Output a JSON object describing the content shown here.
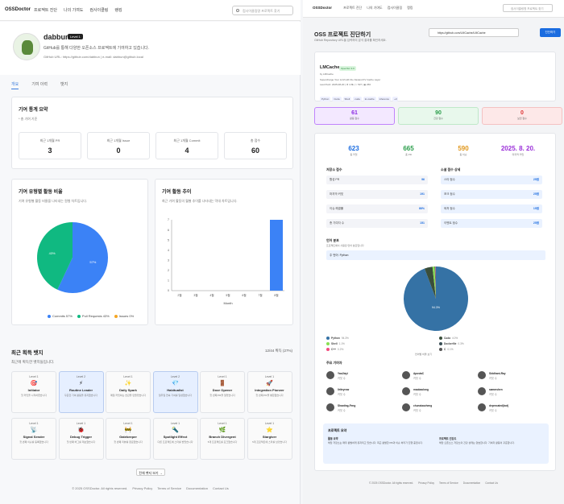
{
  "left": {
    "nav": {
      "brand": "OSSDoctor",
      "links": [
        "프로젝트 진단",
        "나의 기여도",
        "컴사이클링",
        "랭킹"
      ],
      "search_placeholder": "컴사이클링명 프로젝트 찾기"
    },
    "profile": {
      "name": "dabbun",
      "level": "Level 1",
      "desc": "GitHub를 통해 다양한 오픈소스 프로젝트에 기여하고 있습니다.",
      "url": "GitHub URL: https://github.com/dabbun | e-mail: dabbun@github.local"
    },
    "tabs": [
      "개요",
      "기여 이력",
      "뱃지"
    ],
    "stats": {
      "title": "기여 통계 요약",
      "sub": "* 총 기여 기준",
      "items": [
        {
          "label": "최근 1개월 PR",
          "value": "3"
        },
        {
          "label": "최근 1개월 Issue",
          "value": "0"
        },
        {
          "label": "최근 1개월 Commit",
          "value": "4"
        },
        {
          "label": "총 점수",
          "value": "60"
        }
      ]
    },
    "ratio": {
      "title": "기여 유형별 활동 비율",
      "sub": "기여 유형별 활동 비율을 나타내는 원형 차트입니다.",
      "legend": [
        "Commits 57%",
        "Pull Requests 43%",
        "Issues 0%"
      ],
      "colors": [
        "#3b82f6",
        "#10b981",
        "#f5a623"
      ]
    },
    "trend": {
      "title": "기여 활동 추이",
      "sub": "최근 기여 활동의 월별 추이를 나타내는 막대 차트입니다.",
      "xlabel": "Month"
    },
    "badges": {
      "title": "최근 획득 뱃지",
      "count": "12/44 획득 (27%)",
      "sub": "최근에 획득한 뱃지들입니다.",
      "more": "전체 뱃지 보기 →",
      "items": [
        {
          "level": "Level 1",
          "icon": "🎯",
          "name": "Initiator",
          "desc": "첫 커밋을 시작하였습니다",
          "hi": false
        },
        {
          "level": "Level 2",
          "icon": "⚡",
          "name": "Routine Leader",
          "desc": "꾸준한 기여 활동을 유지했습니다",
          "hi": true
        },
        {
          "level": "Level 1",
          "icon": "✨",
          "name": "Daily Spark",
          "desc": "매일 커밋하는 습관을 만들었습니다",
          "hi": false
        },
        {
          "level": "Level 2",
          "icon": "💎",
          "name": "Habitualist",
          "desc": "일주일 연속 기여를 달성했습니다",
          "hi": true
        },
        {
          "level": "Level 1",
          "icon": "🚪",
          "name": "Door Opener",
          "desc": "첫 번째 PR을 열었습니다",
          "hi": false
        },
        {
          "level": "Level 1",
          "icon": "🚀",
          "name": "Integration Pioneer",
          "desc": "첫 번째 PR을 병합했습니다",
          "hi": false
        },
        {
          "level": "Level 1",
          "icon": "📡",
          "name": "Signal Sender",
          "desc": "첫 번째 이슈를 등록했습니다",
          "hi": false
        },
        {
          "level": "Level 1",
          "icon": "🐞",
          "name": "Debug Trigger",
          "desc": "첫 번째 버그를 제보했습니다",
          "hi": false
        },
        {
          "level": "Level 1",
          "icon": "🚧",
          "name": "Gatekeeper",
          "desc": "첫 번째 리뷰를 완료했습니다",
          "hi": false
        },
        {
          "level": "Level 1",
          "icon": "🔦",
          "name": "Spotlight Effect",
          "desc": "다른 프로젝트에 스타를 받았습니다",
          "hi": false
        },
        {
          "level": "Level 1",
          "icon": "🌿",
          "name": "Branch Divergent",
          "desc": "5개 프로젝트를 포크했습니다",
          "hi": false
        },
        {
          "level": "Level 1",
          "icon": "⭐",
          "name": "Stargiver",
          "desc": "5개 프로젝트에 스타를 남겼습니다",
          "hi": false
        }
      ]
    },
    "footer": [
      "© 2025 OSSDoctor. All rights reserved.",
      "Privacy Policy",
      "Terms of Service",
      "Documentation",
      "Contact Us"
    ]
  },
  "right": {
    "nav": {
      "brand": "OSSDoctor",
      "links": [
        "프로젝트 진단",
        "나의 기여도",
        "컴사이클링",
        "랭킹"
      ],
      "search_placeholder": "컴사이클링명 프로젝트 찾기"
    },
    "title": "OSS 프로젝트 진단하기",
    "sub": "GitHub Repository URL을 입력하여 분석 결과를 확인하세요.",
    "input_value": "https://github.com/LMCache/LMCache",
    "button": "진단하기",
    "repo": {
      "name": "LMCache",
      "badge": "OpenSrc 3.0",
      "owner": "by LMCache",
      "desc": "Supercharge Your LLM with the Fastest KV Cache Layer",
      "meta": "Last Push: 2025-08-20 | ★ 4.8k | ⑂ 537 | ◉ 256",
      "tags": [
        "Python",
        "Cuda",
        "Shell",
        "cuda",
        "kv-cache",
        "inference",
        "+3"
      ]
    },
    "scores": [
      {
        "v": "61",
        "l": "활동 점수",
        "c": "#f3e8ff",
        "b": "#c084fc",
        "t": "#8a2be2"
      },
      {
        "v": "90",
        "l": "건강 점수",
        "c": "#e8f8ec",
        "b": "#bfe8c8",
        "t": "#2a9d4a"
      },
      {
        "v": "0",
        "l": "보안 점수",
        "c": "#fde8e8",
        "b": "#f4c2c2",
        "t": "#d33"
      }
    ],
    "kpis": [
      {
        "v": "623",
        "l": "총 커밋",
        "c": "#1a6ce0"
      },
      {
        "v": "665",
        "l": "총 PR",
        "c": "#2a9d4a"
      },
      {
        "v": "590",
        "l": "총 이슈",
        "c": "#e0961a"
      },
      {
        "v": "2025. 8. 20.",
        "l": "마지막 커밋",
        "c": "#9b30d9"
      }
    ],
    "activity": {
      "title": "저장소 점수",
      "items": [
        {
          "l": "활성 PR",
          "v": "96"
        },
        {
          "l": "마지막 커밋",
          "v": "191"
        },
        {
          "l": "이슈 해결률",
          "v": "88%"
        },
        {
          "l": "총 기여자 수",
          "v": "151"
        }
      ]
    },
    "detail": {
      "title": "소셜 점수 상세",
      "items": [
        {
          "l": "스타 점수",
          "v": "25점"
        },
        {
          "l": "포크 점수",
          "v": "25점"
        },
        {
          "l": "와처 점수",
          "v": "15점"
        },
        {
          "l": "이벤트 점수",
          "v": "25점"
        }
      ]
    },
    "lang": {
      "title": "언어 분포",
      "sub": "프로젝트에서 사용된 언어 분포입니다",
      "top": "주 언어: Python",
      "pie_label": "94.3%",
      "items": [
        {
          "n": "Python",
          "v": "94.3%",
          "c": "#3572A5"
        },
        {
          "n": "Cuda",
          "v": "4.0%",
          "c": "#3A4E3A"
        },
        {
          "n": "Shell",
          "v": "1.1%",
          "c": "#89e051"
        },
        {
          "n": "Dockerfile",
          "v": "0.3%",
          "c": "#384d54"
        },
        {
          "n": "C++",
          "v": "0.2%",
          "c": "#f34b7d"
        },
        {
          "n": "C",
          "v": "0.1%",
          "c": "#555555"
        }
      ],
      "more": "언어별 비율 보기"
    },
    "contrib": {
      "title": "주요 기여자",
      "items": [
        {
          "n": "YaoJiayi",
          "c": "커밋 수"
        },
        {
          "n": "ApostaC",
          "c": "커밋 수"
        },
        {
          "n": "Siddhant-Ray",
          "c": "커밋 수"
        },
        {
          "n": "liriteyrow",
          "c": "커밋 수"
        },
        {
          "n": "maobaolong",
          "c": "커밋 수"
        },
        {
          "n": "sammshen",
          "c": "커밋 수"
        },
        {
          "n": "Shaoting-Feng",
          "c": "커밋 수"
        },
        {
          "n": "chunxiaozheng",
          "c": "커밋 수"
        },
        {
          "n": "deprecated(bot)",
          "c": "커밋 수"
        }
      ]
    },
    "summary": {
      "title": "프로젝트 요약",
      "a_title": "활동 요약",
      "a_text": "해당 저장소는 매우 활발하게 유지되고 있습니다. 최근 활발한 PR과 이슈 처리가 진행 중입니다.",
      "b_title": "프로젝트 건강도",
      "b_text": "해당 오픈소스 저장소의 건강 상태는 양호합니다. 기여자 활동이 꾸준합니다."
    },
    "footer": [
      "© 2025 OSSDoctor. All rights reserved.",
      "Privacy Policy",
      "Terms of Service",
      "Documentation",
      "Contact Us"
    ]
  },
  "chart_data": [
    {
      "type": "pie",
      "title": "기여 유형별 활동 비율",
      "categories": [
        "Commits",
        "Pull Requests",
        "Issues"
      ],
      "values": [
        57,
        43,
        0
      ]
    },
    {
      "type": "bar",
      "title": "기여 활동 추이",
      "xlabel": "Month",
      "ylabel": "",
      "categories": [
        "2월",
        "3월",
        "4월",
        "5월",
        "6월",
        "7월",
        "8월"
      ],
      "values": [
        0,
        0,
        0,
        0,
        0,
        0,
        7
      ],
      "ylim": [
        0,
        7
      ]
    },
    {
      "type": "pie",
      "title": "언어 분포",
      "categories": [
        "Python",
        "Cuda",
        "Shell",
        "Dockerfile",
        "C++",
        "C"
      ],
      "values": [
        94.3,
        4.0,
        1.1,
        0.3,
        0.2,
        0.1
      ]
    }
  ]
}
